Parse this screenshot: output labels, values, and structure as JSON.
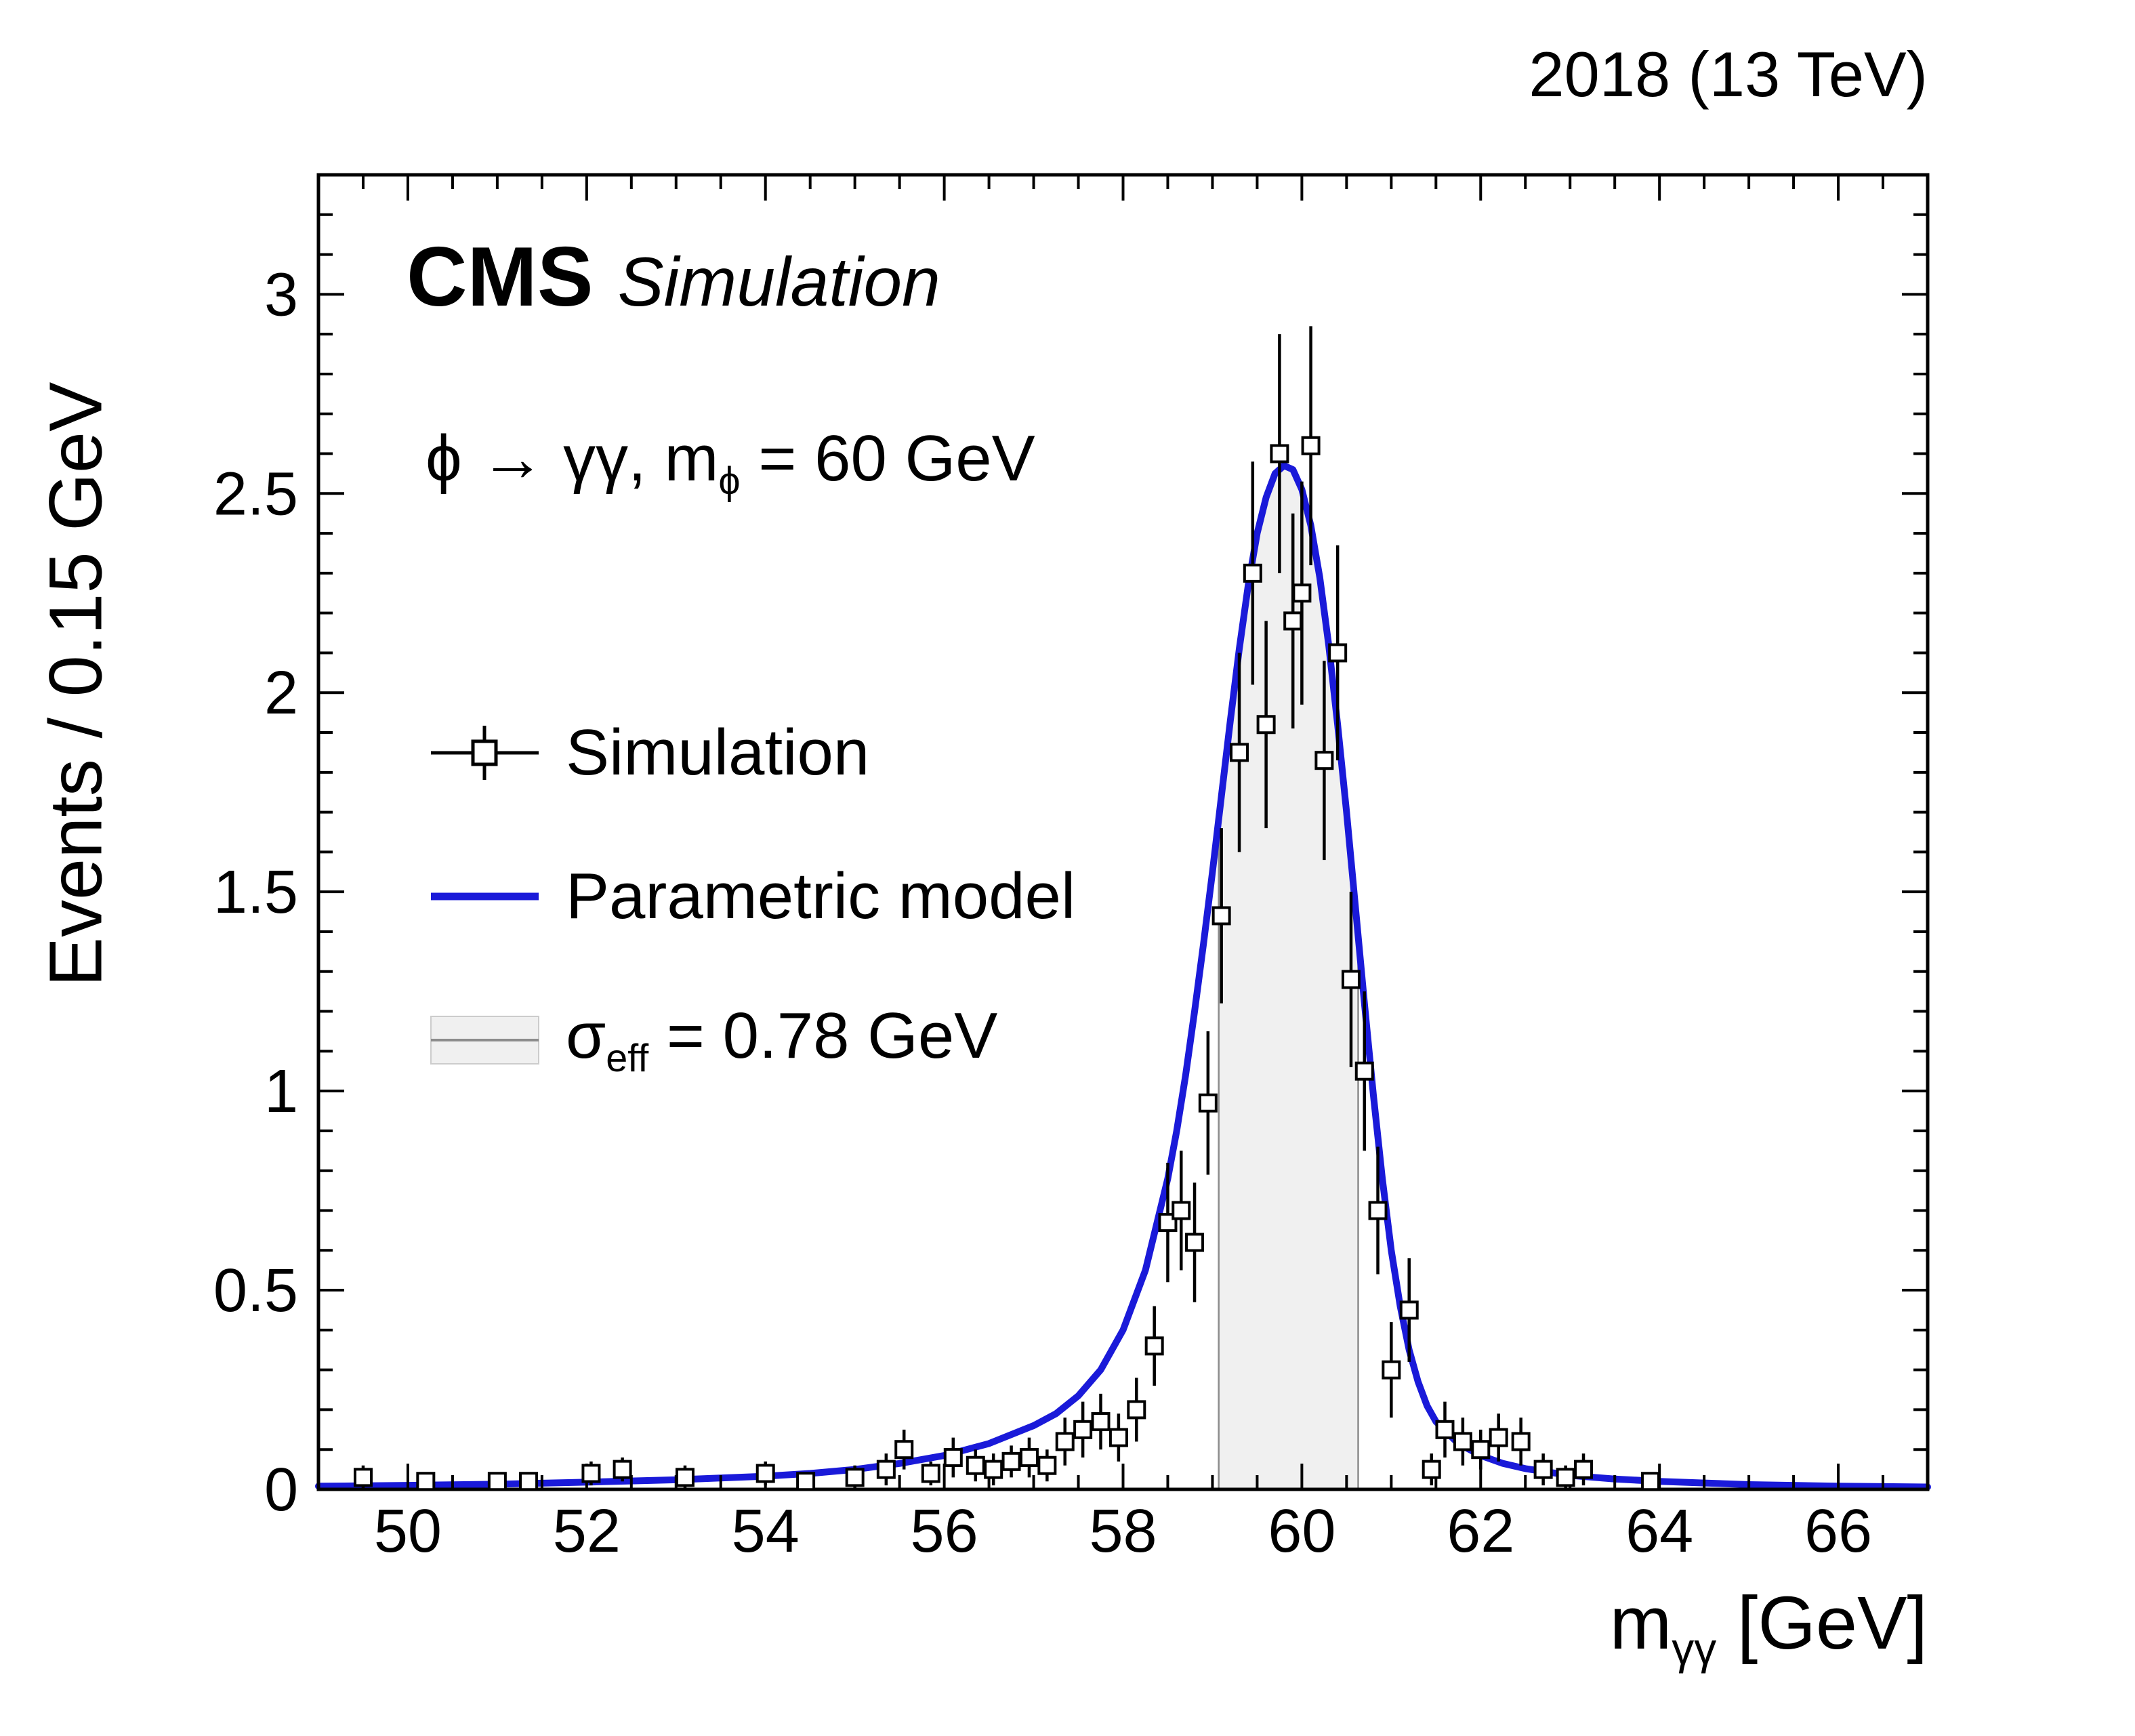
{
  "header": {
    "lumi_label": "2018 (13 TeV)"
  },
  "plot": {
    "cms": "CMS",
    "cms_sub": "Simulation",
    "annotation": {
      "pre": "ϕ → γγ, m",
      "sub": "ϕ",
      "post": " = 60 GeV"
    },
    "legend_items": [
      {
        "label": "Simulation",
        "marker": "data-point"
      },
      {
        "label": "Parametric model",
        "marker": "blue-line"
      },
      {
        "label_pre": "σ",
        "label_sub": "eff",
        "label_post": " = 0.78 GeV",
        "marker": "sigma-band"
      }
    ]
  },
  "chart_data": {
    "type": "scatter",
    "title": "",
    "xlabel_pre": "m",
    "xlabel_sub": "γγ",
    "xlabel_post": " [GeV]",
    "ylabel": "Events / 0.15 GeV",
    "xlim": [
      49,
      67
    ],
    "ylim": [
      0,
      3.3
    ],
    "x_ticks": [
      50,
      52,
      54,
      56,
      58,
      60,
      62,
      64,
      66
    ],
    "x_tick_labels": [
      "50",
      "52",
      "54",
      "56",
      "58",
      "60",
      "62",
      "64",
      "66"
    ],
    "x_minor_step": 0.5,
    "y_ticks": [
      0,
      0.5,
      1,
      1.5,
      2,
      2.5,
      3
    ],
    "y_tick_labels": [
      "0",
      "0.5",
      "1",
      "1.5",
      "2",
      "2.5",
      "3"
    ],
    "y_minor_step": 0.1,
    "bin_half_width": 0.075,
    "grid": false,
    "legend_position": "upper-left",
    "series_names": [
      "Simulation",
      "Parametric model"
    ],
    "sigma_band": {
      "x_low": 59.07,
      "x_high": 60.63,
      "sigma_eff_gev": 0.78,
      "peak_mass_gev": 60
    },
    "points": [
      [
        49.5,
        0.03,
        0.03
      ],
      [
        50.2,
        0.02,
        0.02
      ],
      [
        51.0,
        0.02,
        0.02
      ],
      [
        51.35,
        0.02,
        0.02
      ],
      [
        52.05,
        0.04,
        0.03
      ],
      [
        52.4,
        0.05,
        0.03
      ],
      [
        53.1,
        0.03,
        0.03
      ],
      [
        54.0,
        0.04,
        0.03
      ],
      [
        54.45,
        0.02,
        0.02
      ],
      [
        55.0,
        0.03,
        0.03
      ],
      [
        55.35,
        0.05,
        0.04
      ],
      [
        55.55,
        0.1,
        0.05
      ],
      [
        55.85,
        0.04,
        0.03
      ],
      [
        56.1,
        0.08,
        0.05
      ],
      [
        56.35,
        0.06,
        0.04
      ],
      [
        56.55,
        0.05,
        0.04
      ],
      [
        56.75,
        0.07,
        0.04
      ],
      [
        56.95,
        0.08,
        0.05
      ],
      [
        57.15,
        0.06,
        0.04
      ],
      [
        57.35,
        0.12,
        0.06
      ],
      [
        57.55,
        0.15,
        0.07
      ],
      [
        57.75,
        0.17,
        0.07
      ],
      [
        57.95,
        0.13,
        0.06
      ],
      [
        58.15,
        0.2,
        0.08
      ],
      [
        58.35,
        0.36,
        0.1
      ],
      [
        58.5,
        0.67,
        0.15
      ],
      [
        58.65,
        0.7,
        0.15
      ],
      [
        58.8,
        0.62,
        0.15
      ],
      [
        58.95,
        0.97,
        0.18
      ],
      [
        59.1,
        1.44,
        0.22
      ],
      [
        59.3,
        1.85,
        0.25
      ],
      [
        59.45,
        2.3,
        0.28
      ],
      [
        59.6,
        1.92,
        0.26
      ],
      [
        59.75,
        2.6,
        0.3
      ],
      [
        59.9,
        2.18,
        0.27
      ],
      [
        60.0,
        2.25,
        0.28
      ],
      [
        60.1,
        2.62,
        0.3
      ],
      [
        60.25,
        1.83,
        0.25
      ],
      [
        60.4,
        2.1,
        0.27
      ],
      [
        60.55,
        1.28,
        0.22
      ],
      [
        60.7,
        1.05,
        0.2
      ],
      [
        60.85,
        0.7,
        0.16
      ],
      [
        61.0,
        0.3,
        0.12
      ],
      [
        61.2,
        0.45,
        0.13
      ],
      [
        61.45,
        0.05,
        0.04
      ],
      [
        61.6,
        0.15,
        0.07
      ],
      [
        61.8,
        0.12,
        0.06
      ],
      [
        62.0,
        0.1,
        0.05
      ],
      [
        62.2,
        0.13,
        0.06
      ],
      [
        62.45,
        0.12,
        0.06
      ],
      [
        62.7,
        0.05,
        0.04
      ],
      [
        62.95,
        0.03,
        0.03
      ],
      [
        63.15,
        0.05,
        0.04
      ],
      [
        63.9,
        0.02,
        0.02
      ]
    ],
    "model_curve": {
      "x": [
        49,
        50,
        51,
        52,
        53,
        54,
        54.5,
        55,
        55.5,
        56,
        56.5,
        57,
        57.25,
        57.5,
        57.75,
        58,
        58.25,
        58.5,
        58.6,
        58.7,
        58.8,
        58.9,
        59.0,
        59.1,
        59.2,
        59.3,
        59.4,
        59.5,
        59.6,
        59.7,
        59.8,
        59.9,
        60.0,
        60.1,
        60.2,
        60.3,
        60.4,
        60.5,
        60.6,
        60.7,
        60.8,
        60.9,
        61.0,
        61.1,
        61.2,
        61.3,
        61.4,
        61.5,
        61.75,
        62,
        62.25,
        62.5,
        63,
        63.5,
        64,
        64.5,
        65,
        66,
        67
      ],
      "y": [
        0.008,
        0.01,
        0.013,
        0.018,
        0.024,
        0.033,
        0.04,
        0.05,
        0.065,
        0.085,
        0.115,
        0.16,
        0.19,
        0.235,
        0.3,
        0.4,
        0.55,
        0.78,
        0.9,
        1.04,
        1.2,
        1.37,
        1.55,
        1.74,
        1.93,
        2.11,
        2.27,
        2.4,
        2.49,
        2.55,
        2.57,
        2.56,
        2.51,
        2.42,
        2.29,
        2.12,
        1.92,
        1.7,
        1.46,
        1.22,
        0.99,
        0.78,
        0.6,
        0.46,
        0.35,
        0.27,
        0.21,
        0.17,
        0.115,
        0.085,
        0.065,
        0.052,
        0.035,
        0.026,
        0.02,
        0.016,
        0.012,
        0.008,
        0.006
      ]
    },
    "colors": {
      "model": "#1a1ad9",
      "band_fill": "#f0f0f0",
      "band_edge": "#8c8c8c",
      "marker_edge": "#000000",
      "frame": "#000000"
    }
  }
}
